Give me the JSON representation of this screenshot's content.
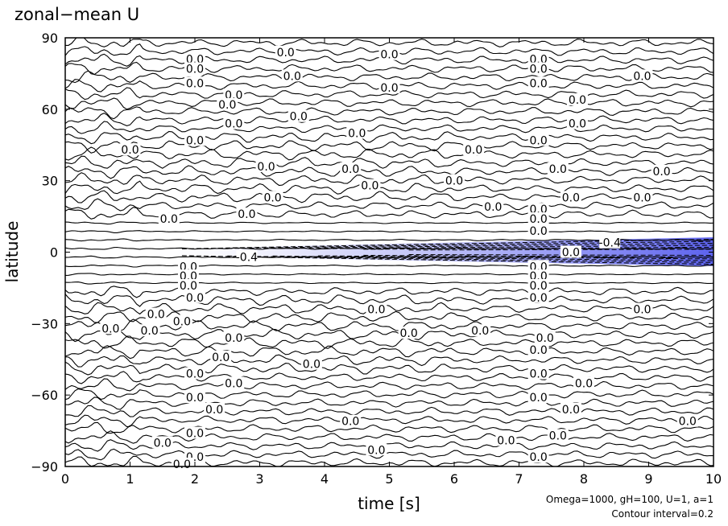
{
  "chart_data": {
    "type": "contour",
    "title": "zonal−mean U",
    "xlabel": "time [s]",
    "ylabel": "latitude",
    "xlim": [
      0,
      10
    ],
    "ylim": [
      -90,
      90
    ],
    "x_ticks": [
      0,
      1,
      2,
      3,
      4,
      5,
      6,
      7,
      8,
      9,
      10
    ],
    "y_ticks": [
      -90,
      -60,
      -30,
      0,
      30,
      60,
      90
    ],
    "y_tick_labels": [
      "−90",
      "−60",
      "−30",
      "0",
      "30",
      "60",
      "90"
    ],
    "contour_interval": 0.2,
    "negative_fill_color": "#6e73f0",
    "line_color": "#000000",
    "contour_labels": [
      {
        "text": "0.0",
        "x": 3.4,
        "y": 84
      },
      {
        "text": "0.0",
        "x": 5.0,
        "y": 83
      },
      {
        "text": "0.0",
        "x": 7.3,
        "y": 81
      },
      {
        "text": "0.0",
        "x": 2.0,
        "y": 81
      },
      {
        "text": "0.0",
        "x": 2.0,
        "y": 77
      },
      {
        "text": "0.0",
        "x": 3.5,
        "y": 74
      },
      {
        "text": "0.0",
        "x": 8.9,
        "y": 74
      },
      {
        "text": "0.0",
        "x": 7.3,
        "y": 77
      },
      {
        "text": "0.0",
        "x": 2.0,
        "y": 71
      },
      {
        "text": "0.0",
        "x": 5.0,
        "y": 69
      },
      {
        "text": "0.0",
        "x": 7.3,
        "y": 71
      },
      {
        "text": "0.0",
        "x": 2.6,
        "y": 66
      },
      {
        "text": "0.0",
        "x": 2.5,
        "y": 62
      },
      {
        "text": "0.0",
        "x": 3.6,
        "y": 57
      },
      {
        "text": "0.0",
        "x": 2.6,
        "y": 54
      },
      {
        "text": "0.0",
        "x": 7.9,
        "y": 64
      },
      {
        "text": "0.0",
        "x": 7.9,
        "y": 54
      },
      {
        "text": "0.0",
        "x": 4.5,
        "y": 50
      },
      {
        "text": "0.0",
        "x": 2.0,
        "y": 47
      },
      {
        "text": "0.0",
        "x": 1.0,
        "y": 43
      },
      {
        "text": "0.0",
        "x": 6.3,
        "y": 43
      },
      {
        "text": "0.0",
        "x": 7.3,
        "y": 47
      },
      {
        "text": "0.0",
        "x": 3.1,
        "y": 36
      },
      {
        "text": "0.0",
        "x": 4.4,
        "y": 35
      },
      {
        "text": "0.0",
        "x": 7.6,
        "y": 35
      },
      {
        "text": "0.0",
        "x": 9.2,
        "y": 34
      },
      {
        "text": "0.0",
        "x": 4.7,
        "y": 28
      },
      {
        "text": "0.0",
        "x": 6.0,
        "y": 30
      },
      {
        "text": "0.0",
        "x": 3.2,
        "y": 23
      },
      {
        "text": "0.0",
        "x": 7.8,
        "y": 23
      },
      {
        "text": "0.0",
        "x": 8.9,
        "y": 23
      },
      {
        "text": "0.0",
        "x": 2.8,
        "y": 16
      },
      {
        "text": "0.0",
        "x": 6.6,
        "y": 19
      },
      {
        "text": "0.0",
        "x": 7.3,
        "y": 18
      },
      {
        "text": "0.0",
        "x": 7.3,
        "y": 14
      },
      {
        "text": "0.0",
        "x": 1.6,
        "y": 14
      },
      {
        "text": "0.0",
        "x": 7.3,
        "y": 9
      },
      {
        "text": "0.0",
        "x": 7.8,
        "y": 0
      },
      {
        "text": "-0.4",
        "x": 2.8,
        "y": -2
      },
      {
        "text": "-0.4",
        "x": 8.4,
        "y": 4
      },
      {
        "text": "0.0",
        "x": 1.9,
        "y": -6
      },
      {
        "text": "0.0",
        "x": 1.9,
        "y": -10
      },
      {
        "text": "0.0",
        "x": 1.9,
        "y": -14
      },
      {
        "text": "0.0",
        "x": 2.0,
        "y": -19
      },
      {
        "text": "0.0",
        "x": 7.3,
        "y": -6
      },
      {
        "text": "0.0",
        "x": 7.3,
        "y": -10
      },
      {
        "text": "0.0",
        "x": 7.3,
        "y": -14
      },
      {
        "text": "0.0",
        "x": 7.3,
        "y": -19
      },
      {
        "text": "0.0",
        "x": 4.8,
        "y": -24
      },
      {
        "text": "0.0",
        "x": 1.4,
        "y": -26
      },
      {
        "text": "0.0",
        "x": 1.8,
        "y": -29
      },
      {
        "text": "0.0",
        "x": 8.9,
        "y": -24
      },
      {
        "text": "0.0",
        "x": 0.7,
        "y": -32
      },
      {
        "text": "0.0",
        "x": 1.3,
        "y": -33
      },
      {
        "text": "0.0",
        "x": 2.6,
        "y": -36
      },
      {
        "text": "0.0",
        "x": 5.3,
        "y": -34
      },
      {
        "text": "0.0",
        "x": 6.4,
        "y": -33
      },
      {
        "text": "0.0",
        "x": 7.4,
        "y": -36
      },
      {
        "text": "0.0",
        "x": 2.4,
        "y": -44
      },
      {
        "text": "0.0",
        "x": 3.8,
        "y": -47
      },
      {
        "text": "0.0",
        "x": 7.3,
        "y": -41
      },
      {
        "text": "0.0",
        "x": 2.0,
        "y": -51
      },
      {
        "text": "0.0",
        "x": 7.3,
        "y": -51
      },
      {
        "text": "0.0",
        "x": 2.6,
        "y": -55
      },
      {
        "text": "0.0",
        "x": 8.0,
        "y": -55
      },
      {
        "text": "0.0",
        "x": 2.0,
        "y": -61
      },
      {
        "text": "0.0",
        "x": 7.3,
        "y": -61
      },
      {
        "text": "0.0",
        "x": 2.3,
        "y": -66
      },
      {
        "text": "0.0",
        "x": 7.8,
        "y": -66
      },
      {
        "text": "0.0",
        "x": 4.4,
        "y": -71
      },
      {
        "text": "0.0",
        "x": 9.6,
        "y": -71
      },
      {
        "text": "0.0",
        "x": 2.0,
        "y": -76
      },
      {
        "text": "0.0",
        "x": 1.5,
        "y": -80
      },
      {
        "text": "0.0",
        "x": 6.8,
        "y": -79
      },
      {
        "text": "0.0",
        "x": 7.6,
        "y": -77
      },
      {
        "text": "0.0",
        "x": 4.8,
        "y": -83
      },
      {
        "text": "0.0",
        "x": 2.0,
        "y": -86
      },
      {
        "text": "0.0",
        "x": 7.3,
        "y": -86
      },
      {
        "text": "0.0",
        "x": 1.8,
        "y": -89
      }
    ]
  },
  "footnote": {
    "line1": "Omega=1000, gH=100, U=1, a=1",
    "line2": "Contour interval=0.2"
  }
}
